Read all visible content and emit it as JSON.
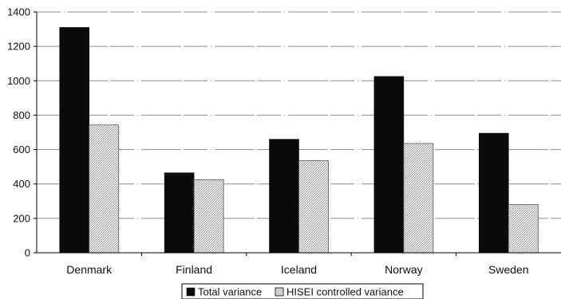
{
  "chart_data": {
    "type": "bar",
    "title": "",
    "xlabel": "",
    "ylabel": "",
    "categories": [
      "Denmark",
      "Finland",
      "Iceland",
      "Norway",
      "Sweden"
    ],
    "series": [
      {
        "name": "Total variance",
        "color": "#0a0a0a",
        "values": [
          1310,
          465,
          660,
          1025,
          695
        ]
      },
      {
        "name": "HISEI controlled variance",
        "color": "#d2d2d2",
        "values": [
          743,
          425,
          535,
          635,
          280
        ]
      }
    ],
    "ylim": [
      0,
      1400
    ],
    "yticks": [
      0,
      200,
      400,
      600,
      800,
      1000,
      1200,
      1400
    ],
    "grid": true,
    "legend_position": "bottom-center"
  }
}
